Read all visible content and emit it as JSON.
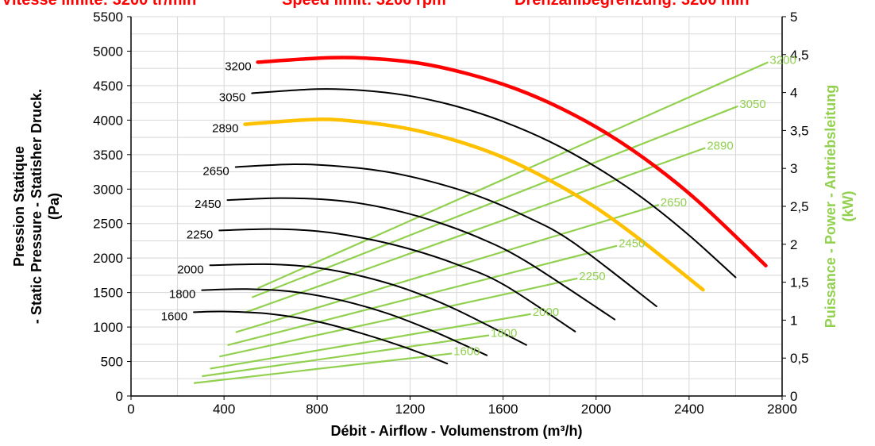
{
  "top_text": {
    "left": "Vitesse limite: 3200 tr/min",
    "center": "Speed limit: 3200 rpm",
    "right": "Drehzahlbegrenzung: 3200 min"
  },
  "colors": {
    "speed_limit": "#ff0000",
    "highlight": "#ffc000",
    "pressure": "#000000",
    "power": "#92d050",
    "grid": "#d8d8d8"
  },
  "chart_data": {
    "type": "line",
    "xlabel": "Débit - Airflow - Volumenstrom (m³/h)",
    "ylabel_lines": [
      "Pression Statique",
      "- Static Pressure - Statisher Druck.",
      "(Pa)"
    ],
    "y2label_lines": [
      "Puissance - Power - Antriebsleitung",
      "(kW)"
    ],
    "xlim": [
      0,
      2800
    ],
    "ylim": [
      0,
      5500
    ],
    "y2lim": [
      0,
      5
    ],
    "x_ticks": [
      "0",
      "400",
      "800",
      "1200",
      "1600",
      "2000",
      "2400",
      "2800"
    ],
    "y_ticks": [
      "0",
      "500",
      "1000",
      "1500",
      "2000",
      "2500",
      "3000",
      "3500",
      "4000",
      "4500",
      "5000",
      "5500"
    ],
    "y2_ticks": [
      "0",
      "0,5",
      "1",
      "1,5",
      "2",
      "2,5",
      "3",
      "3,5",
      "4",
      "4,5",
      "5"
    ],
    "grid": true,
    "pressure_series": [
      {
        "name": "1600",
        "color": "#000000",
        "x": [
          270,
          400,
          600,
          800,
          1000,
          1200,
          1360
        ],
        "y": [
          1215,
          1225,
          1190,
          1080,
          900,
          680,
          470
        ]
      },
      {
        "name": "1800",
        "color": "#000000",
        "x": [
          305,
          500,
          700,
          900,
          1100,
          1300,
          1530
        ],
        "y": [
          1535,
          1550,
          1510,
          1390,
          1200,
          940,
          590
        ]
      },
      {
        "name": "2000",
        "color": "#000000",
        "x": [
          340,
          600,
          800,
          1000,
          1200,
          1400,
          1700
        ],
        "y": [
          1895,
          1910,
          1860,
          1730,
          1530,
          1250,
          740
        ]
      },
      {
        "name": "2250",
        "color": "#000000",
        "x": [
          380,
          600,
          800,
          1000,
          1200,
          1400,
          1600,
          1910
        ],
        "y": [
          2400,
          2420,
          2390,
          2290,
          2130,
          1910,
          1620,
          935
        ]
      },
      {
        "name": "2450",
        "color": "#000000",
        "x": [
          415,
          650,
          900,
          1100,
          1300,
          1500,
          1700,
          2080
        ],
        "y": [
          2840,
          2870,
          2830,
          2720,
          2540,
          2290,
          1950,
          1110
        ]
      },
      {
        "name": "2650",
        "color": "#000000",
        "x": [
          450,
          700,
          900,
          1100,
          1300,
          1500,
          1700,
          1900,
          2260
        ],
        "y": [
          3320,
          3360,
          3330,
          3250,
          3100,
          2890,
          2600,
          2230,
          1300
        ]
      },
      {
        "name": "2890",
        "color": "#ffc000",
        "x": [
          490,
          800,
          1000,
          1200,
          1400,
          1600,
          1800,
          2000,
          2200,
          2460
        ],
        "y": [
          3940,
          4010,
          3970,
          3870,
          3700,
          3460,
          3130,
          2730,
          2240,
          1540
        ]
      },
      {
        "name": "3050",
        "color": "#000000",
        "x": [
          520,
          800,
          1000,
          1200,
          1400,
          1600,
          1800,
          2000,
          2200,
          2400,
          2600
        ],
        "y": [
          4390,
          4450,
          4430,
          4350,
          4200,
          3980,
          3690,
          3320,
          2870,
          2330,
          1720
        ]
      },
      {
        "name": "3200",
        "color": "#ff0000",
        "x": [
          545,
          850,
          1050,
          1250,
          1450,
          1650,
          1850,
          2050,
          2250,
          2450,
          2730
        ],
        "y": [
          4840,
          4905,
          4890,
          4820,
          4670,
          4460,
          4170,
          3800,
          3340,
          2790,
          1890
        ]
      }
    ],
    "power_series": [
      {
        "name": "1600",
        "x": [
          270,
          1380
        ],
        "y": [
          0.17,
          0.56
        ]
      },
      {
        "name": "1800",
        "x": [
          305,
          1540
        ],
        "y": [
          0.26,
          0.8
        ]
      },
      {
        "name": "2000",
        "x": [
          340,
          1720
        ],
        "y": [
          0.36,
          1.08
        ]
      },
      {
        "name": "2250",
        "x": [
          380,
          1920
        ],
        "y": [
          0.52,
          1.55
        ]
      },
      {
        "name": "2450",
        "x": [
          415,
          2090
        ],
        "y": [
          0.67,
          1.98
        ]
      },
      {
        "name": "2650",
        "x": [
          450,
          2270
        ],
        "y": [
          0.84,
          2.52
        ]
      },
      {
        "name": "2890",
        "x": [
          490,
          2470
        ],
        "y": [
          1.1,
          3.27
        ]
      },
      {
        "name": "3050",
        "x": [
          520,
          2610
        ],
        "y": [
          1.3,
          3.82
        ]
      },
      {
        "name": "3200",
        "x": [
          545,
          2740
        ],
        "y": [
          1.42,
          4.4
        ]
      }
    ]
  }
}
